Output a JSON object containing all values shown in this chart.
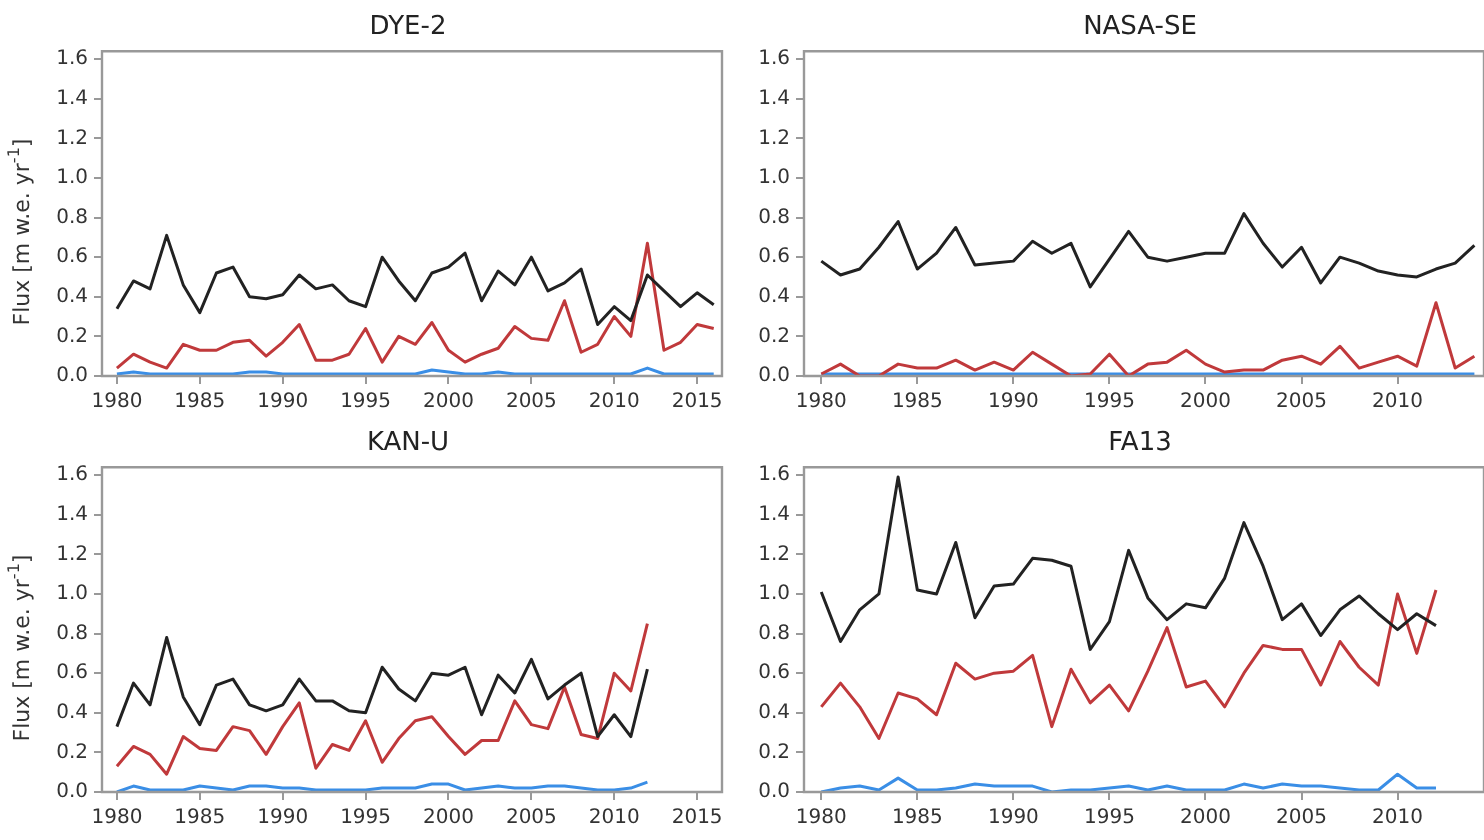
{
  "chart_data": [
    {
      "type": "line",
      "title": "DYE-2",
      "ylabel": "Flux [m w.e. yr$^{-1}$]",
      "xlim": [
        1979.1,
        2016.5
      ],
      "xticks": [
        1980,
        1985,
        1990,
        1995,
        2000,
        2005,
        2010,
        2015
      ],
      "ylim": [
        0,
        1.64
      ],
      "yticks": [
        {
          "value": 0.0,
          "label": "0.0"
        },
        {
          "value": 0.2,
          "label": "0.2"
        },
        {
          "value": 0.4,
          "label": "0.4"
        },
        {
          "value": 0.6,
          "label": "0.6"
        },
        {
          "value": 0.8,
          "label": "0.8"
        },
        {
          "value": 1.0,
          "label": "1.0"
        },
        {
          "value": 1.2,
          "label": "1.2"
        },
        {
          "value": 1.4,
          "label": "1.4"
        },
        {
          "value": 1.6,
          "label": "1.6"
        }
      ],
      "x": [
        1980,
        1981,
        1982,
        1983,
        1984,
        1985,
        1986,
        1987,
        1988,
        1989,
        1990,
        1991,
        1992,
        1993,
        1994,
        1995,
        1996,
        1997,
        1998,
        1999,
        2000,
        2001,
        2002,
        2003,
        2004,
        2005,
        2006,
        2007,
        2008,
        2009,
        2010,
        2011,
        2012,
        2013,
        2014,
        2015,
        2016
      ],
      "series": [
        {
          "color": "#222222",
          "values": [
            0.34,
            0.48,
            0.44,
            0.71,
            0.46,
            0.32,
            0.52,
            0.55,
            0.4,
            0.39,
            0.41,
            0.51,
            0.44,
            0.46,
            0.38,
            0.35,
            0.6,
            0.48,
            0.38,
            0.52,
            0.55,
            0.62,
            0.38,
            0.53,
            0.46,
            0.6,
            0.43,
            0.47,
            0.54,
            0.26,
            0.35,
            0.28,
            0.51,
            0.43,
            0.35,
            0.42,
            0.36
          ]
        },
        {
          "color": "#c0393b",
          "values": [
            0.04,
            0.11,
            0.07,
            0.04,
            0.16,
            0.13,
            0.13,
            0.17,
            0.18,
            0.1,
            0.17,
            0.26,
            0.08,
            0.08,
            0.11,
            0.24,
            0.07,
            0.2,
            0.16,
            0.27,
            0.13,
            0.07,
            0.11,
            0.14,
            0.25,
            0.19,
            0.18,
            0.38,
            0.12,
            0.16,
            0.3,
            0.2,
            0.67,
            0.13,
            0.17,
            0.26,
            0.24
          ]
        },
        {
          "color": "#3a8ee6",
          "values": [
            0.01,
            0.02,
            0.01,
            0.01,
            0.01,
            0.01,
            0.01,
            0.01,
            0.02,
            0.02,
            0.01,
            0.01,
            0.01,
            0.01,
            0.01,
            0.01,
            0.01,
            0.01,
            0.01,
            0.03,
            0.02,
            0.01,
            0.01,
            0.02,
            0.01,
            0.01,
            0.01,
            0.01,
            0.01,
            0.01,
            0.01,
            0.01,
            0.04,
            0.01,
            0.01,
            0.01,
            0.01
          ]
        }
      ]
    },
    {
      "type": "line",
      "title": "NASA-SE",
      "xlim": [
        1979.1,
        2014.5
      ],
      "xticks": [
        1980,
        1985,
        1990,
        1995,
        2000,
        2005,
        2010
      ],
      "ylim": [
        0,
        1.64
      ],
      "yticks": [
        {
          "value": 0.0,
          "label": "0.0"
        },
        {
          "value": 0.2,
          "label": "0.2"
        },
        {
          "value": 0.4,
          "label": "0.4"
        },
        {
          "value": 0.6,
          "label": "0.6"
        },
        {
          "value": 0.8,
          "label": "0.8"
        },
        {
          "value": 1.0,
          "label": "1.0"
        },
        {
          "value": 1.2,
          "label": "1.2"
        },
        {
          "value": 1.4,
          "label": "1.4"
        },
        {
          "value": 1.6,
          "label": "1.6"
        }
      ],
      "x": [
        1980,
        1981,
        1982,
        1983,
        1984,
        1985,
        1986,
        1987,
        1988,
        1989,
        1990,
        1991,
        1992,
        1993,
        1994,
        1995,
        1996,
        1997,
        1998,
        1999,
        2000,
        2001,
        2002,
        2003,
        2004,
        2005,
        2006,
        2007,
        2008,
        2009,
        2010,
        2011,
        2012,
        2013,
        2014
      ],
      "series": [
        {
          "color": "#222222",
          "values": [
            0.58,
            0.51,
            0.54,
            0.65,
            0.78,
            0.54,
            0.62,
            0.75,
            0.56,
            0.57,
            0.58,
            0.68,
            0.62,
            0.67,
            0.45,
            0.59,
            0.73,
            0.6,
            0.58,
            0.6,
            0.62,
            0.62,
            0.82,
            0.67,
            0.55,
            0.65,
            0.47,
            0.6,
            0.57,
            0.53,
            0.51,
            0.5,
            0.54,
            0.57,
            0.66
          ]
        },
        {
          "color": "#c0393b",
          "values": [
            0.01,
            0.06,
            0.0,
            0.0,
            0.06,
            0.04,
            0.04,
            0.08,
            0.03,
            0.07,
            0.03,
            0.12,
            0.06,
            0.0,
            0.01,
            0.11,
            0.0,
            0.06,
            0.07,
            0.13,
            0.06,
            0.02,
            0.03,
            0.03,
            0.08,
            0.1,
            0.06,
            0.15,
            0.04,
            0.07,
            0.1,
            0.05,
            0.37,
            0.04,
            0.1
          ]
        },
        {
          "color": "#3a8ee6",
          "values": [
            0.01,
            0.01,
            0.01,
            0.01,
            0.01,
            0.01,
            0.01,
            0.01,
            0.01,
            0.01,
            0.01,
            0.01,
            0.01,
            0.01,
            0.01,
            0.01,
            0.01,
            0.01,
            0.01,
            0.01,
            0.01,
            0.01,
            0.01,
            0.01,
            0.01,
            0.01,
            0.01,
            0.01,
            0.01,
            0.01,
            0.01,
            0.01,
            0.01,
            0.01,
            0.01
          ]
        }
      ]
    },
    {
      "type": "line",
      "title": "KAN-U",
      "ylabel": "Flux [m w.e. yr$^{-1}$]",
      "xlim": [
        1979.1,
        2016.5
      ],
      "xticks": [
        1980,
        1985,
        1990,
        1995,
        2000,
        2005,
        2010,
        2015
      ],
      "ylim": [
        0,
        1.64
      ],
      "yticks": [
        {
          "value": 0.0,
          "label": "0.0"
        },
        {
          "value": 0.2,
          "label": "0.2"
        },
        {
          "value": 0.4,
          "label": "0.4"
        },
        {
          "value": 0.6,
          "label": "0.6"
        },
        {
          "value": 0.8,
          "label": "0.8"
        },
        {
          "value": 1.0,
          "label": "1.0"
        },
        {
          "value": 1.2,
          "label": "1.2"
        },
        {
          "value": 1.4,
          "label": "1.4"
        },
        {
          "value": 1.6,
          "label": "1.6"
        }
      ],
      "x": [
        1980,
        1981,
        1982,
        1983,
        1984,
        1985,
        1986,
        1987,
        1988,
        1989,
        1990,
        1991,
        1992,
        1993,
        1994,
        1995,
        1996,
        1997,
        1998,
        1999,
        2000,
        2001,
        2002,
        2003,
        2004,
        2005,
        2006,
        2007,
        2008,
        2009,
        2010,
        2011,
        2012
      ],
      "series": [
        {
          "color": "#222222",
          "values": [
            0.33,
            0.55,
            0.44,
            0.78,
            0.48,
            0.34,
            0.54,
            0.57,
            0.44,
            0.41,
            0.44,
            0.57,
            0.46,
            0.46,
            0.41,
            0.4,
            0.63,
            0.52,
            0.46,
            0.6,
            0.59,
            0.63,
            0.39,
            0.59,
            0.5,
            0.67,
            0.47,
            0.54,
            0.6,
            0.28,
            0.39,
            0.28,
            0.62
          ]
        },
        {
          "color": "#c0393b",
          "values": [
            0.13,
            0.23,
            0.19,
            0.09,
            0.28,
            0.22,
            0.21,
            0.33,
            0.31,
            0.19,
            0.33,
            0.45,
            0.12,
            0.24,
            0.21,
            0.36,
            0.15,
            0.27,
            0.36,
            0.38,
            0.28,
            0.19,
            0.26,
            0.26,
            0.46,
            0.34,
            0.32,
            0.53,
            0.29,
            0.27,
            0.6,
            0.51,
            0.85
          ]
        },
        {
          "color": "#3a8ee6",
          "values": [
            0.0,
            0.03,
            0.01,
            0.01,
            0.01,
            0.03,
            0.02,
            0.01,
            0.03,
            0.03,
            0.02,
            0.02,
            0.01,
            0.01,
            0.01,
            0.01,
            0.02,
            0.02,
            0.02,
            0.04,
            0.04,
            0.01,
            0.02,
            0.03,
            0.02,
            0.02,
            0.03,
            0.03,
            0.02,
            0.01,
            0.01,
            0.02,
            0.05
          ]
        }
      ]
    },
    {
      "type": "line",
      "title": "FA13",
      "xlim": [
        1979.1,
        2014.5
      ],
      "xticks": [
        1980,
        1985,
        1990,
        1995,
        2000,
        2005,
        2010
      ],
      "ylim": [
        0,
        1.64
      ],
      "yticks": [
        {
          "value": 0.0,
          "label": "0.0"
        },
        {
          "value": 0.2,
          "label": "0.2"
        },
        {
          "value": 0.4,
          "label": "0.4"
        },
        {
          "value": 0.6,
          "label": "0.6"
        },
        {
          "value": 0.8,
          "label": "0.8"
        },
        {
          "value": 1.0,
          "label": "1.0"
        },
        {
          "value": 1.2,
          "label": "1.2"
        },
        {
          "value": 1.4,
          "label": "1.4"
        },
        {
          "value": 1.6,
          "label": "1.6"
        }
      ],
      "x": [
        1980,
        1981,
        1982,
        1983,
        1984,
        1985,
        1986,
        1987,
        1988,
        1989,
        1990,
        1991,
        1992,
        1993,
        1994,
        1995,
        1996,
        1997,
        1998,
        1999,
        2000,
        2001,
        2002,
        2003,
        2004,
        2005,
        2006,
        2007,
        2008,
        2009,
        2010,
        2011,
        2012
      ],
      "series": [
        {
          "color": "#222222",
          "values": [
            1.01,
            0.76,
            0.92,
            1.0,
            1.59,
            1.02,
            1.0,
            1.26,
            0.88,
            1.04,
            1.05,
            1.18,
            1.17,
            1.14,
            0.72,
            0.86,
            1.22,
            0.98,
            0.87,
            0.95,
            0.93,
            1.08,
            1.36,
            1.14,
            0.87,
            0.95,
            0.79,
            0.92,
            0.99,
            0.9,
            0.82,
            0.9,
            0.84
          ]
        },
        {
          "color": "#c0393b",
          "values": [
            0.43,
            0.55,
            0.43,
            0.27,
            0.5,
            0.47,
            0.39,
            0.65,
            0.57,
            0.6,
            0.61,
            0.69,
            0.33,
            0.62,
            0.45,
            0.54,
            0.41,
            0.61,
            0.83,
            0.53,
            0.56,
            0.43,
            0.6,
            0.74,
            0.72,
            0.72,
            0.54,
            0.76,
            0.63,
            0.54,
            1.0,
            0.7,
            1.02
          ]
        },
        {
          "color": "#3a8ee6",
          "values": [
            0.0,
            0.02,
            0.03,
            0.01,
            0.07,
            0.01,
            0.01,
            0.02,
            0.04,
            0.03,
            0.03,
            0.03,
            0.0,
            0.01,
            0.01,
            0.02,
            0.03,
            0.01,
            0.03,
            0.01,
            0.01,
            0.01,
            0.04,
            0.02,
            0.04,
            0.03,
            0.03,
            0.02,
            0.01,
            0.01,
            0.09,
            0.02,
            0.02
          ]
        }
      ]
    }
  ]
}
